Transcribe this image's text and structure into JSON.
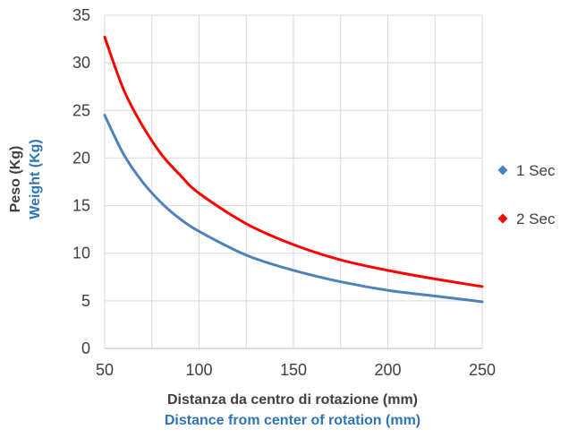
{
  "chart_data": {
    "type": "line",
    "title": "",
    "xlabel": "Distanza da centro di rotazione (mm)",
    "xlabel_en": "Distance from center of rotation (mm)",
    "ylabel": "Peso (Kg)",
    "ylabel_en": "Weight (Kg)",
    "xlim": [
      50,
      250
    ],
    "ylim": [
      0,
      35
    ],
    "xticks": [
      50,
      100,
      150,
      200,
      250
    ],
    "yticks": [
      0,
      5,
      10,
      15,
      20,
      25,
      30,
      35
    ],
    "grid": true,
    "legend_position": "right",
    "colors": {
      "xlabel": "#404040",
      "xlabel_en": "#2E75B6",
      "ylabel": "#404040",
      "ylabel_en": "#2E75B6"
    },
    "series": [
      {
        "name": "1 Sec",
        "color": "#4F81BD",
        "x": [
          50,
          60,
          70,
          80,
          90,
          100,
          125,
          150,
          175,
          200,
          225,
          250
        ],
        "y": [
          24.5,
          20.4,
          17.5,
          15.3,
          13.6,
          12.3,
          9.8,
          8.2,
          7.0,
          6.1,
          5.5,
          4.9
        ]
      },
      {
        "name": "2 Sec",
        "color": "#FF0000",
        "x": [
          50,
          60,
          70,
          80,
          90,
          100,
          125,
          150,
          175,
          200,
          225,
          250
        ],
        "y": [
          32.7,
          27.2,
          23.4,
          20.4,
          18.2,
          16.3,
          13.1,
          10.9,
          9.3,
          8.2,
          7.3,
          6.5
        ]
      }
    ]
  }
}
